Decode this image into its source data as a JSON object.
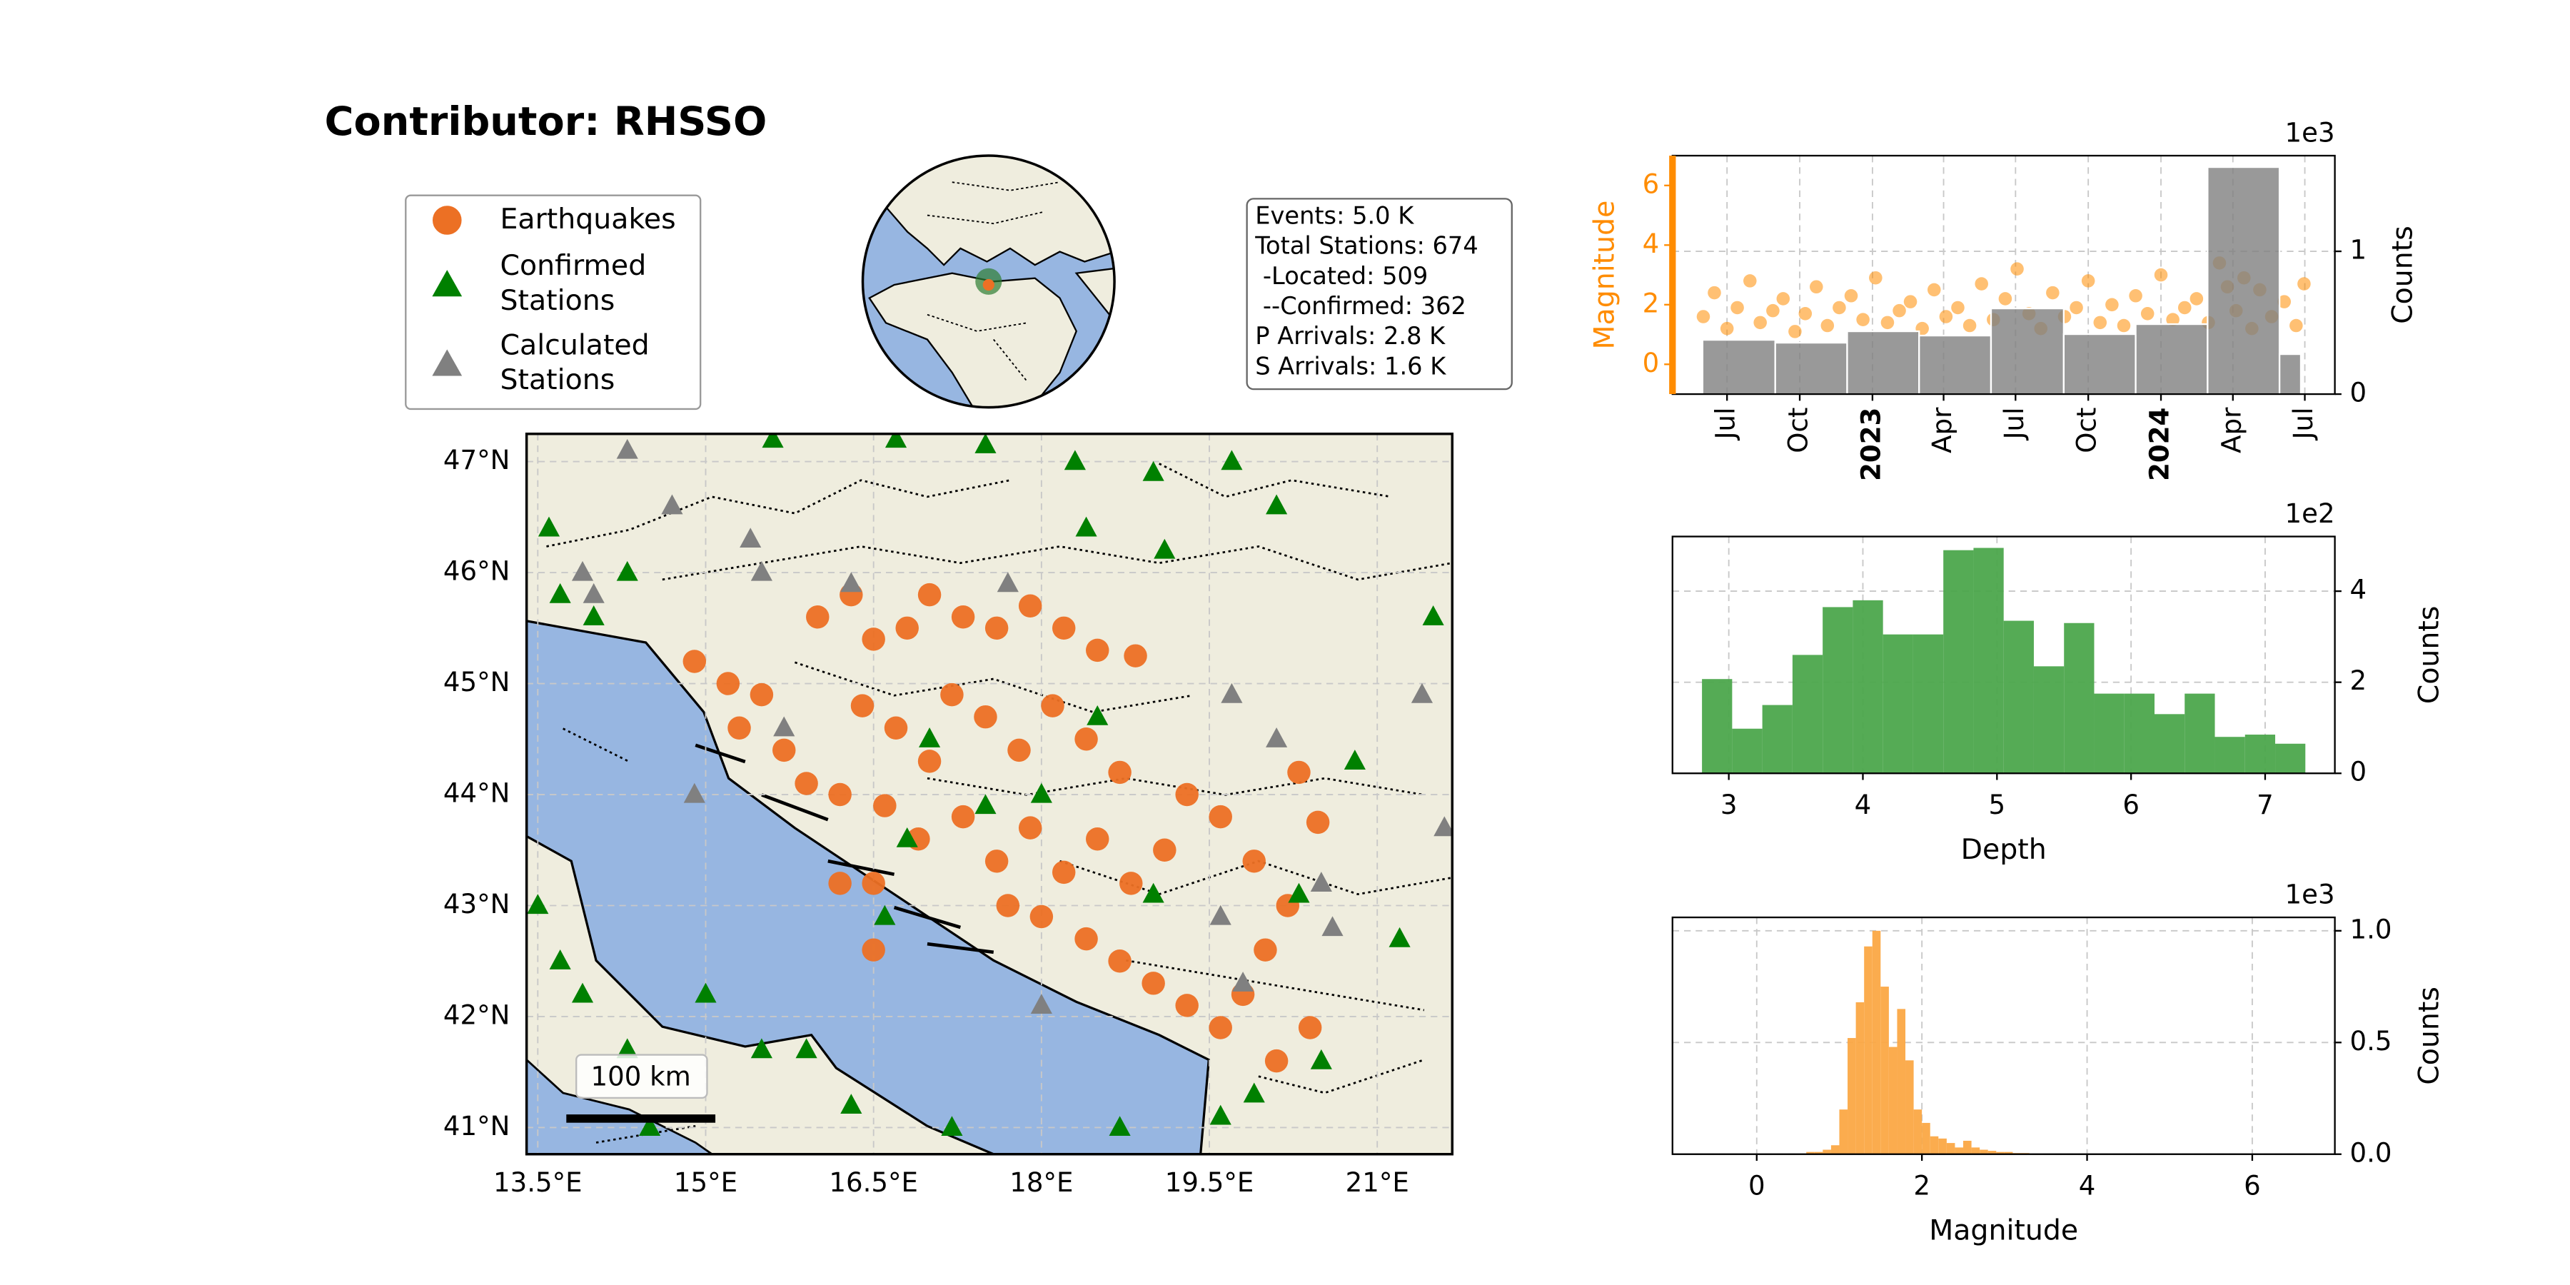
{
  "title": "Contributor: RHSSO",
  "info": [
    "Events: 5.0 K",
    "Total Stations: 674",
    " -Located: 509",
    " --Confirmed: 362",
    "P Arrivals: 2.8 K",
    "S Arrivals: 1.6 K"
  ],
  "chart_data": [
    {
      "type": "map",
      "scale_bar": "100 km",
      "grid": true,
      "xlim": [
        13.4,
        21.67
      ],
      "ylim": [
        40.76,
        47.25
      ],
      "xticks": [
        {
          "value": 13.5,
          "label": "13.5°E"
        },
        {
          "value": 15,
          "label": "15°E"
        },
        {
          "value": 16.5,
          "label": "16.5°E"
        },
        {
          "value": 18,
          "label": "18°E"
        },
        {
          "value": 19.5,
          "label": "19.5°E"
        },
        {
          "value": 21,
          "label": "21°E"
        }
      ],
      "yticks": [
        {
          "value": 41,
          "label": "41°N"
        },
        {
          "value": 42,
          "label": "42°N"
        },
        {
          "value": 43,
          "label": "43°N"
        },
        {
          "value": 44,
          "label": "44°N"
        },
        {
          "value": 45,
          "label": "45°N"
        },
        {
          "value": 46,
          "label": "46°N"
        },
        {
          "value": 47,
          "label": "47°N"
        }
      ],
      "series": [
        {
          "name": "Earthquakes",
          "color": "#ec7024",
          "marker": "circle",
          "x": [
            14.9,
            15.2,
            15.5,
            15.3,
            15.7,
            15.9,
            16.2,
            16.0,
            16.3,
            16.5,
            16.8,
            17.0,
            17.3,
            17.6,
            17.9,
            18.2,
            18.5,
            16.4,
            16.7,
            17.0,
            17.2,
            17.5,
            17.8,
            18.1,
            18.4,
            18.7,
            16.6,
            16.9,
            17.3,
            17.6,
            17.9,
            18.2,
            18.5,
            18.8,
            19.1,
            19.3,
            19.6,
            17.7,
            18.0,
            18.4,
            18.7,
            19.0,
            19.3,
            19.6,
            19.8,
            20.0,
            20.2,
            19.9,
            20.3,
            16.2,
            16.5,
            16.5,
            20.1,
            20.4,
            20.47,
            18.84
          ],
          "y": [
            45.2,
            45.0,
            44.9,
            44.6,
            44.4,
            44.1,
            44.0,
            45.6,
            45.8,
            45.4,
            45.5,
            45.8,
            45.6,
            45.5,
            45.7,
            45.5,
            45.3,
            44.8,
            44.6,
            44.3,
            44.9,
            44.7,
            44.4,
            44.8,
            44.5,
            44.2,
            43.9,
            43.6,
            43.8,
            43.4,
            43.7,
            43.3,
            43.6,
            43.2,
            43.5,
            44.0,
            43.8,
            43.0,
            42.9,
            42.7,
            42.5,
            42.3,
            42.1,
            41.9,
            42.2,
            42.6,
            43.0,
            43.4,
            44.2,
            43.2,
            43.2,
            42.6,
            41.6,
            41.9,
            43.75,
            45.25
          ]
        },
        {
          "name": "Confirmed\nStations",
          "color": "#008000",
          "marker": "triangle",
          "x": [
            13.6,
            13.7,
            15.6,
            16.7,
            17.5,
            18.3,
            19.0,
            19.7,
            18.4,
            19.1,
            20.1,
            21.5,
            20.8,
            20.3,
            13.5,
            13.7,
            13.9,
            14.3,
            14.5,
            15.0,
            15.5,
            15.9,
            16.3,
            17.5,
            17.0,
            18.0,
            18.5,
            19.0,
            19.9,
            20.5,
            19.6,
            21.2,
            16.8,
            17.2,
            18.7,
            14.0,
            14.3,
            16.6
          ],
          "y": [
            46.4,
            45.8,
            47.2,
            47.2,
            47.15,
            47.0,
            46.9,
            47.0,
            46.4,
            46.2,
            46.6,
            45.6,
            44.3,
            43.1,
            43.0,
            42.5,
            42.2,
            41.7,
            41.0,
            42.2,
            41.7,
            41.7,
            41.2,
            43.9,
            44.5,
            44.0,
            44.7,
            43.1,
            41.3,
            41.6,
            41.1,
            42.7,
            43.6,
            41.0,
            41.0,
            45.6,
            46.0,
            42.9
          ]
        },
        {
          "name": "Calculated\nStations",
          "color": "#808080",
          "marker": "triangle",
          "x": [
            14.3,
            14.7,
            13.9,
            14.0,
            15.4,
            15.5,
            16.3,
            17.7,
            19.7,
            21.4,
            20.1,
            20.5,
            19.8,
            18.0,
            19.6,
            15.7,
            20.6,
            21.6,
            14.9
          ],
          "y": [
            47.1,
            46.6,
            46.0,
            45.8,
            46.3,
            46.0,
            45.9,
            45.9,
            44.9,
            44.9,
            44.5,
            43.2,
            42.3,
            42.1,
            42.9,
            44.6,
            42.8,
            43.7,
            44.0
          ]
        }
      ]
    },
    {
      "type": "time",
      "ylabel": "Magnitude",
      "y2label": "Counts",
      "y2offset": "1e3",
      "color": "#ff8c00",
      "grid": true,
      "x": [
        "2022-06-01",
        "2022-06-15",
        "2022-07-01",
        "2022-07-14",
        "2022-07-30",
        "2022-08-12",
        "2022-08-28",
        "2022-09-10",
        "2022-09-25",
        "2022-10-08",
        "2022-10-22",
        "2022-11-05",
        "2022-11-20",
        "2022-12-05",
        "2022-12-20",
        "2023-01-05",
        "2023-01-20",
        "2023-02-04",
        "2023-02-18",
        "2023-03-05",
        "2023-03-20",
        "2023-04-04",
        "2023-04-19",
        "2023-05-04",
        "2023-05-19",
        "2023-06-03",
        "2023-06-18",
        "2023-07-03",
        "2023-07-18",
        "2023-08-02",
        "2023-08-17",
        "2023-09-01",
        "2023-09-16",
        "2023-10-01",
        "2023-10-16",
        "2023-10-31",
        "2023-11-15",
        "2023-11-30",
        "2023-12-15",
        "2024-01-01",
        "2024-01-16",
        "2024-01-31",
        "2024-02-15",
        "2024-03-01",
        "2024-03-15",
        "2024-03-25",
        "2024-04-05",
        "2024-04-15",
        "2024-04-25",
        "2024-05-05",
        "2024-05-20",
        "2024-06-05",
        "2024-06-20",
        "2024-06-30"
      ],
      "values": [
        1.6,
        2.4,
        1.2,
        1.9,
        2.8,
        1.4,
        1.8,
        2.2,
        1.1,
        1.7,
        2.6,
        1.3,
        1.9,
        2.3,
        1.5,
        2.9,
        1.4,
        1.8,
        2.1,
        1.2,
        2.5,
        1.6,
        1.9,
        1.3,
        2.7,
        1.5,
        2.2,
        3.2,
        1.7,
        1.2,
        2.4,
        1.6,
        1.9,
        2.8,
        1.4,
        2.0,
        1.3,
        2.3,
        1.7,
        3.0,
        1.5,
        1.9,
        2.2,
        1.4,
        3.4,
        2.6,
        1.8,
        2.9,
        1.2,
        2.5,
        1.6,
        2.1,
        1.3,
        2.7
      ],
      "xlim": [
        "2022-04-23",
        "2024-08-08"
      ],
      "xticks": [
        {
          "value": "2022-07-01",
          "label": "Jul"
        },
        {
          "value": "2022-10-01",
          "label": "Oct"
        },
        {
          "value": "2023-01-01",
          "label": "2023"
        },
        {
          "value": "2023-04-01",
          "label": "Apr"
        },
        {
          "value": "2023-07-01",
          "label": "Jul"
        },
        {
          "value": "2023-10-01",
          "label": "Oct"
        },
        {
          "value": "2024-01-01",
          "label": "2024"
        },
        {
          "value": "2024-04-01",
          "label": "Apr"
        },
        {
          "value": "2024-07-01",
          "label": "Jul"
        }
      ],
      "ylim": [
        -1,
        7
      ],
      "yticks": [
        0,
        2,
        4,
        6
      ],
      "y2lim": [
        0,
        1.67
      ],
      "y2ticks": [
        0,
        1
      ],
      "histogram": {
        "axis": "y2",
        "color": "#808080",
        "bins": [
          "2022-05-31",
          "2022-08-31",
          "2022-11-30",
          "2023-03-01",
          "2023-05-31",
          "2023-08-31",
          "2023-11-30",
          "2024-02-29",
          "2024-05-30",
          "2024-06-26"
        ],
        "counts": [
          0.38,
          0.36,
          0.44,
          0.41,
          0.6,
          0.42,
          0.49,
          1.59,
          0.28
        ]
      }
    },
    {
      "type": "histogram",
      "xlabel": "Depth",
      "ylabel": "Counts",
      "yoffset": "1e2",
      "color": "#4ca64c",
      "grid": true,
      "bins": [
        2.8,
        3.025,
        3.25,
        3.475,
        3.7,
        3.925,
        4.15,
        4.375,
        4.6,
        4.825,
        5.05,
        5.275,
        5.5,
        5.725,
        5.95,
        6.175,
        6.4,
        6.625,
        6.85,
        7.075,
        7.3
      ],
      "counts": [
        2.07,
        0.98,
        1.5,
        2.6,
        3.65,
        3.8,
        3.05,
        3.05,
        4.9,
        4.95,
        3.35,
        2.35,
        3.3,
        1.75,
        1.75,
        1.3,
        1.75,
        0.8,
        0.85,
        0.65
      ],
      "xlim": [
        2.58,
        7.52
      ],
      "xticks": [
        3,
        4,
        5,
        6,
        7
      ],
      "ylim": [
        0,
        5.2
      ],
      "yticks": [
        0,
        2,
        4
      ]
    },
    {
      "type": "histogram",
      "xlabel": "Magnitude",
      "ylabel": "Counts",
      "yoffset": "1e3",
      "color": "#fba845",
      "grid": true,
      "bins": [
        0.6,
        0.7,
        0.8,
        0.9,
        1.0,
        1.1,
        1.2,
        1.3,
        1.4,
        1.5,
        1.6,
        1.7,
        1.8,
        1.9,
        2.0,
        2.1,
        2.2,
        2.3,
        2.4,
        2.5,
        2.6,
        2.7,
        2.8,
        2.9,
        3.0,
        3.1,
        3.2,
        3.3
      ],
      "counts": [
        0.01,
        0.01,
        0.02,
        0.04,
        0.2,
        0.52,
        0.68,
        0.93,
        1.0,
        0.75,
        0.48,
        0.65,
        0.42,
        0.2,
        0.14,
        0.08,
        0.07,
        0.05,
        0.03,
        0.06,
        0.03,
        0.02,
        0.015,
        0.01,
        0.01,
        0.005,
        0.005
      ],
      "xlim": [
        -1.02,
        7.0
      ],
      "xticks": [
        0,
        2,
        4,
        6
      ],
      "ylim": [
        0,
        1.06
      ],
      "yticks": [
        {
          "value": 0,
          "label": "0.0"
        },
        {
          "value": 0.5,
          "label": "0.5"
        },
        {
          "value": 1,
          "label": "1.0"
        }
      ]
    }
  ]
}
